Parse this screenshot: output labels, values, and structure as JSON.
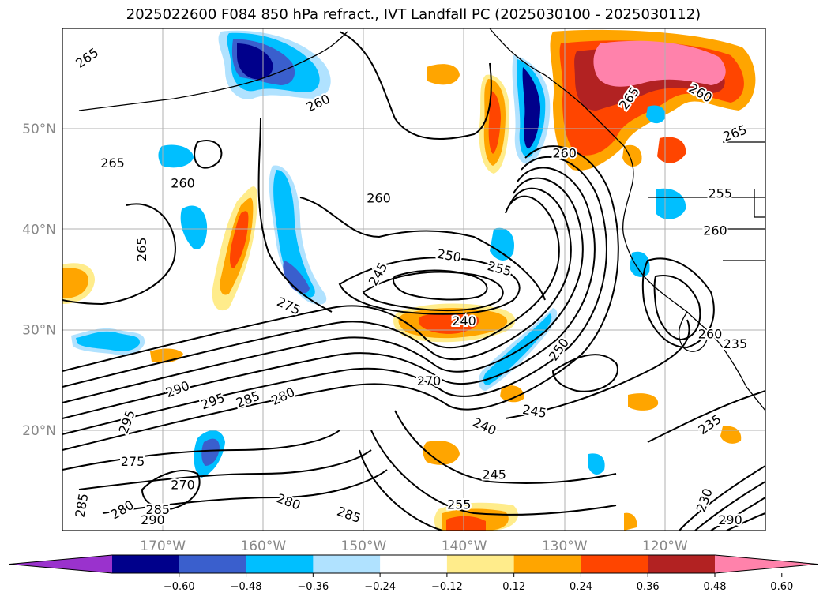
{
  "title": "2025022600 F084 850 hPa refract., IVT Landfall PC (2025030100 - 2025030112)",
  "map": {
    "lat_labels": [
      {
        "text": "50°N",
        "lat": 50
      },
      {
        "text": "40°N",
        "lat": 40
      },
      {
        "text": "30°N",
        "lat": 30
      },
      {
        "text": "20°N",
        "lat": 20
      }
    ],
    "lon_labels": [
      {
        "text": "170°W",
        "lon": -170
      },
      {
        "text": "160°W",
        "lon": -160
      },
      {
        "text": "150°W",
        "lon": -150
      },
      {
        "text": "140°W",
        "lon": -140
      },
      {
        "text": "130°W",
        "lon": -130
      },
      {
        "text": "120°W",
        "lon": -120
      }
    ],
    "extent": {
      "lon_min": -180,
      "lon_max": -110,
      "lat_min": 10,
      "lat_max": 60
    },
    "contour_labels": [
      {
        "text": "265",
        "lon": -177.5,
        "lat": 57.0,
        "rot": -35
      },
      {
        "text": "260",
        "lon": -154.5,
        "lat": 52.5,
        "rot": -25
      },
      {
        "text": "265",
        "lon": -175.0,
        "lat": 46.5,
        "rot": 0
      },
      {
        "text": "260",
        "lon": -168.0,
        "lat": 44.5,
        "rot": 0
      },
      {
        "text": "265",
        "lon": -172.0,
        "lat": 38.0,
        "rot": -90
      },
      {
        "text": "260",
        "lon": -148.5,
        "lat": 43.0,
        "rot": 0
      },
      {
        "text": "250",
        "lon": -141.5,
        "lat": 37.3,
        "rot": 10
      },
      {
        "text": "255",
        "lon": -136.5,
        "lat": 36.0,
        "rot": 15
      },
      {
        "text": "245",
        "lon": -148.5,
        "lat": 35.5,
        "rot": -60
      },
      {
        "text": "275",
        "lon": -157.5,
        "lat": 32.3,
        "rot": 25
      },
      {
        "text": "240",
        "lon": -140.0,
        "lat": 30.8,
        "rot": 0
      },
      {
        "text": "250",
        "lon": -130.5,
        "lat": 28.0,
        "rot": -55
      },
      {
        "text": "260",
        "lon": -130.0,
        "lat": 47.5,
        "rot": 0
      },
      {
        "text": "265",
        "lon": -123.5,
        "lat": 53.0,
        "rot": -55
      },
      {
        "text": "260",
        "lon": -116.5,
        "lat": 53.5,
        "rot": 30
      },
      {
        "text": "265",
        "lon": -113.0,
        "lat": 49.5,
        "rot": -20
      },
      {
        "text": "255",
        "lon": -114.5,
        "lat": 43.5,
        "rot": 0
      },
      {
        "text": "260",
        "lon": -115.0,
        "lat": 39.8,
        "rot": 0
      },
      {
        "text": "260",
        "lon": -115.5,
        "lat": 29.5,
        "rot": 0
      },
      {
        "text": "235",
        "lon": -113.0,
        "lat": 28.5,
        "rot": 0
      },
      {
        "text": "270",
        "lon": -143.5,
        "lat": 24.8,
        "rot": 0
      },
      {
        "text": "290",
        "lon": -168.5,
        "lat": 24.0,
        "rot": -20
      },
      {
        "text": "295",
        "lon": -165.0,
        "lat": 22.8,
        "rot": -20
      },
      {
        "text": "285",
        "lon": -161.5,
        "lat": 23.0,
        "rot": -20
      },
      {
        "text": "280",
        "lon": -158.0,
        "lat": 23.3,
        "rot": -25
      },
      {
        "text": "295",
        "lon": -173.5,
        "lat": 20.8,
        "rot": -70
      },
      {
        "text": "245",
        "lon": -133.0,
        "lat": 21.8,
        "rot": 10
      },
      {
        "text": "240",
        "lon": -138.0,
        "lat": 20.3,
        "rot": 25
      },
      {
        "text": "235",
        "lon": -115.5,
        "lat": 20.5,
        "rot": -35
      },
      {
        "text": "275",
        "lon": -173.0,
        "lat": 16.8,
        "rot": 0
      },
      {
        "text": "270",
        "lon": -168.0,
        "lat": 14.5,
        "rot": 0
      },
      {
        "text": "245",
        "lon": -137.0,
        "lat": 15.5,
        "rot": 0
      },
      {
        "text": "285",
        "lon": -178.0,
        "lat": 12.5,
        "rot": -80
      },
      {
        "text": "280",
        "lon": -157.5,
        "lat": 12.8,
        "rot": 20
      },
      {
        "text": "280",
        "lon": -174.0,
        "lat": 12.0,
        "rot": -30
      },
      {
        "text": "285",
        "lon": -170.5,
        "lat": 12.0,
        "rot": 0
      },
      {
        "text": "290",
        "lon": -171.0,
        "lat": 11.0,
        "rot": 0
      },
      {
        "text": "285",
        "lon": -151.5,
        "lat": 11.5,
        "rot": 20
      },
      {
        "text": "255",
        "lon": -140.5,
        "lat": 12.5,
        "rot": 0
      },
      {
        "text": "230",
        "lon": -116.0,
        "lat": 13.0,
        "rot": -70
      },
      {
        "text": "290",
        "lon": -113.5,
        "lat": 11.0,
        "rot": 0
      }
    ]
  },
  "colorbar": {
    "colors": [
      "#9a32cd",
      "#00008b",
      "#3a5fcd",
      "#00bfff",
      "#b0e2ff",
      "#ffffff",
      "#ffec8b",
      "#ffa500",
      "#ff4500",
      "#b22222",
      "#ff82ab"
    ],
    "ticks": [
      "−0.60",
      "−0.48",
      "−0.36",
      "−0.24",
      "−0.12",
      "0.12",
      "0.24",
      "0.36",
      "0.48",
      "0.60"
    ],
    "levels": [
      -0.6,
      -0.48,
      -0.36,
      -0.24,
      -0.12,
      0.12,
      0.24,
      0.36,
      0.48,
      0.6
    ]
  }
}
